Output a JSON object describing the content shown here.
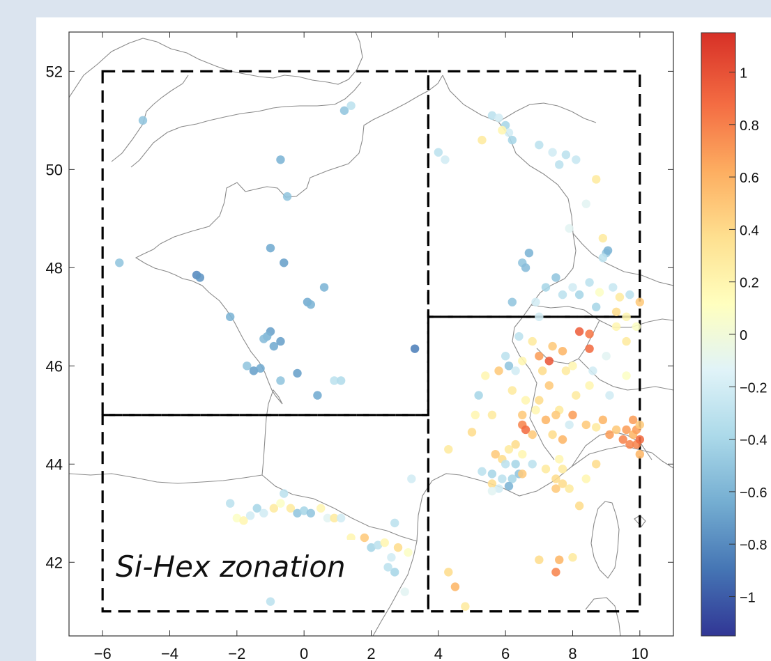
{
  "chart_data": {
    "type": "scatter",
    "title": "",
    "xlabel": "",
    "ylabel": "",
    "xlim": [
      -7,
      11
    ],
    "ylim": [
      40.5,
      52.8
    ],
    "x_ticks": [
      -6,
      -4,
      -2,
      0,
      2,
      4,
      6,
      8,
      10
    ],
    "x_tick_labels": [
      "−6",
      "−4",
      "−2",
      "0",
      "2",
      "4",
      "6",
      "8",
      "10"
    ],
    "y_ticks": [
      42,
      44,
      46,
      48,
      50,
      52
    ],
    "y_tick_labels": [
      "42",
      "44",
      "46",
      "48",
      "50",
      "52"
    ],
    "grid": false,
    "annotation": "Si-Hex zonation",
    "zones": [
      {
        "lon": [
          -6,
          3.7
        ],
        "lat": [
          45,
          52
        ]
      },
      {
        "lon": [
          -6,
          3.7
        ],
        "lat": [
          41,
          45
        ]
      },
      {
        "lon": [
          3.7,
          10
        ],
        "lat": [
          47,
          52
        ]
      },
      {
        "lon": [
          3.7,
          10
        ],
        "lat": [
          41,
          47
        ]
      }
    ],
    "colorbar": {
      "range": [
        -1.15,
        1.15
      ],
      "ticks": [
        1,
        0.8,
        0.6,
        0.4,
        0.2,
        0,
        -0.2,
        -0.4,
        -0.6,
        -0.8,
        -1
      ],
      "tick_labels": [
        "1",
        "0.8",
        "0.6",
        "0.4",
        "0.2",
        "0",
        "−0.2",
        "−0.4",
        "−0.6",
        "−0.8",
        "−1"
      ],
      "colormap": [
        "#313695",
        "#4575b4",
        "#74add1",
        "#abd9e9",
        "#e0f3f8",
        "#ffffbf",
        "#fee090",
        "#fdae61",
        "#f46d43",
        "#d73027"
      ]
    },
    "points": [
      {
        "x": -5.5,
        "y": 48.1,
        "v": -0.5
      },
      {
        "x": -4.8,
        "y": 51.0,
        "v": -0.5
      },
      {
        "x": -3.2,
        "y": 47.85,
        "v": -0.8
      },
      {
        "x": -3.1,
        "y": 47.8,
        "v": -0.75
      },
      {
        "x": -2.2,
        "y": 47.0,
        "v": -0.6
      },
      {
        "x": -1.7,
        "y": 46.0,
        "v": -0.5
      },
      {
        "x": -1.5,
        "y": 45.9,
        "v": -0.7
      },
      {
        "x": -1.3,
        "y": 45.95,
        "v": -0.65
      },
      {
        "x": -1.0,
        "y": 46.7,
        "v": -0.7
      },
      {
        "x": -1.1,
        "y": 46.6,
        "v": -0.6
      },
      {
        "x": -0.9,
        "y": 46.4,
        "v": -0.65
      },
      {
        "x": -0.7,
        "y": 46.5,
        "v": -0.7
      },
      {
        "x": -1.2,
        "y": 46.55,
        "v": -0.55
      },
      {
        "x": -1.0,
        "y": 48.4,
        "v": -0.65
      },
      {
        "x": -0.6,
        "y": 48.1,
        "v": -0.7
      },
      {
        "x": -0.7,
        "y": 50.2,
        "v": -0.6
      },
      {
        "x": -0.5,
        "y": 49.45,
        "v": -0.5
      },
      {
        "x": -0.7,
        "y": 45.7,
        "v": -0.5
      },
      {
        "x": -0.2,
        "y": 45.85,
        "v": -0.7
      },
      {
        "x": 0.1,
        "y": 47.3,
        "v": -0.65
      },
      {
        "x": 0.2,
        "y": 47.25,
        "v": -0.6
      },
      {
        "x": 0.6,
        "y": 47.6,
        "v": -0.6
      },
      {
        "x": 0.4,
        "y": 45.4,
        "v": -0.65
      },
      {
        "x": 0.9,
        "y": 45.7,
        "v": -0.3
      },
      {
        "x": 1.1,
        "y": 45.7,
        "v": -0.35
      },
      {
        "x": 1.2,
        "y": 51.2,
        "v": -0.5
      },
      {
        "x": 1.4,
        "y": 51.3,
        "v": -0.3
      },
      {
        "x": 3.3,
        "y": 46.35,
        "v": -0.85
      },
      {
        "x": -1.8,
        "y": 41.9,
        "v": -0.4
      },
      {
        "x": -1.0,
        "y": 41.2,
        "v": -0.3
      },
      {
        "x": -2.2,
        "y": 43.2,
        "v": -0.3
      },
      {
        "x": -2.0,
        "y": 42.9,
        "v": 0.1
      },
      {
        "x": -1.8,
        "y": 42.85,
        "v": 0.2
      },
      {
        "x": -1.6,
        "y": 42.95,
        "v": -0.2
      },
      {
        "x": -1.4,
        "y": 43.1,
        "v": -0.4
      },
      {
        "x": -1.2,
        "y": 43.0,
        "v": -0.2
      },
      {
        "x": -0.9,
        "y": 43.1,
        "v": 0.3
      },
      {
        "x": -0.7,
        "y": 43.2,
        "v": 0.1
      },
      {
        "x": -0.6,
        "y": 43.4,
        "v": -0.3
      },
      {
        "x": -0.4,
        "y": 43.1,
        "v": 0.3
      },
      {
        "x": -0.2,
        "y": 43.0,
        "v": -0.5
      },
      {
        "x": 0.0,
        "y": 43.05,
        "v": -0.4
      },
      {
        "x": 0.2,
        "y": 43.0,
        "v": -0.5
      },
      {
        "x": 0.5,
        "y": 43.1,
        "v": 0.2
      },
      {
        "x": 0.7,
        "y": 42.9,
        "v": -0.1
      },
      {
        "x": 0.9,
        "y": 42.9,
        "v": 0.3
      },
      {
        "x": 1.1,
        "y": 42.9,
        "v": -0.2
      },
      {
        "x": 1.4,
        "y": 42.5,
        "v": 0.2
      },
      {
        "x": 1.8,
        "y": 42.5,
        "v": 0.5
      },
      {
        "x": 2.0,
        "y": 42.3,
        "v": -0.4
      },
      {
        "x": 2.2,
        "y": 42.35,
        "v": -0.3
      },
      {
        "x": 2.4,
        "y": 42.4,
        "v": 0.2
      },
      {
        "x": 2.6,
        "y": 42.1,
        "v": -0.2
      },
      {
        "x": 2.7,
        "y": 42.8,
        "v": -0.3
      },
      {
        "x": 2.8,
        "y": 42.3,
        "v": 0.4
      },
      {
        "x": 3.1,
        "y": 42.2,
        "v": 0.1
      },
      {
        "x": 3.2,
        "y": 43.7,
        "v": -0.2
      },
      {
        "x": 3.0,
        "y": 41.4,
        "v": -0.1
      },
      {
        "x": 2.7,
        "y": 41.8,
        "v": -0.4
      },
      {
        "x": 2.5,
        "y": 41.9,
        "v": -0.3
      },
      {
        "x": 4.0,
        "y": 50.35,
        "v": -0.3
      },
      {
        "x": 4.2,
        "y": 50.2,
        "v": -0.2
      },
      {
        "x": 5.6,
        "y": 51.1,
        "v": -0.3
      },
      {
        "x": 5.8,
        "y": 51.05,
        "v": -0.2
      },
      {
        "x": 6.0,
        "y": 50.9,
        "v": -0.4
      },
      {
        "x": 6.1,
        "y": 50.75,
        "v": -0.2
      },
      {
        "x": 5.9,
        "y": 50.8,
        "v": 0.2
      },
      {
        "x": 6.2,
        "y": 50.6,
        "v": -0.4
      },
      {
        "x": 5.3,
        "y": 50.6,
        "v": 0.3
      },
      {
        "x": 7.0,
        "y": 50.5,
        "v": -0.3
      },
      {
        "x": 7.4,
        "y": 50.35,
        "v": -0.2
      },
      {
        "x": 7.8,
        "y": 50.3,
        "v": -0.3
      },
      {
        "x": 8.1,
        "y": 50.2,
        "v": -0.25
      },
      {
        "x": 7.6,
        "y": 50.1,
        "v": -0.3
      },
      {
        "x": 8.7,
        "y": 49.8,
        "v": 0.3
      },
      {
        "x": 8.4,
        "y": 49.3,
        "v": -0.1
      },
      {
        "x": 7.9,
        "y": 48.8,
        "v": -0.1
      },
      {
        "x": 8.9,
        "y": 48.6,
        "v": 0.3
      },
      {
        "x": 9.0,
        "y": 48.3,
        "v": -0.5
      },
      {
        "x": 9.05,
        "y": 48.35,
        "v": -0.6
      },
      {
        "x": 8.9,
        "y": 48.2,
        "v": -0.3
      },
      {
        "x": 6.7,
        "y": 48.3,
        "v": -0.6
      },
      {
        "x": 6.5,
        "y": 48.1,
        "v": -0.5
      },
      {
        "x": 6.6,
        "y": 48.0,
        "v": -0.55
      },
      {
        "x": 7.5,
        "y": 47.8,
        "v": -0.5
      },
      {
        "x": 7.2,
        "y": 47.6,
        "v": -0.4
      },
      {
        "x": 8.0,
        "y": 47.6,
        "v": -0.2
      },
      {
        "x": 8.5,
        "y": 47.7,
        "v": -0.3
      },
      {
        "x": 8.8,
        "y": 47.5,
        "v": 0.1
      },
      {
        "x": 7.7,
        "y": 47.45,
        "v": -0.3
      },
      {
        "x": 8.2,
        "y": 47.45,
        "v": -0.4
      },
      {
        "x": 9.2,
        "y": 47.6,
        "v": -0.25
      },
      {
        "x": 9.4,
        "y": 47.4,
        "v": 0.3
      },
      {
        "x": 9.7,
        "y": 47.45,
        "v": -0.3
      },
      {
        "x": 10.0,
        "y": 47.3,
        "v": 0.5
      },
      {
        "x": 9.3,
        "y": 47.1,
        "v": 0.4
      },
      {
        "x": 8.7,
        "y": 47.2,
        "v": -0.4
      },
      {
        "x": 9.6,
        "y": 47.0,
        "v": 0.2
      },
      {
        "x": 6.2,
        "y": 47.3,
        "v": -0.5
      },
      {
        "x": 6.9,
        "y": 47.3,
        "v": -0.2
      },
      {
        "x": 7.0,
        "y": 47.0,
        "v": -0.2
      },
      {
        "x": 8.2,
        "y": 46.7,
        "v": 0.95
      },
      {
        "x": 8.5,
        "y": 46.65,
        "v": 0.85
      },
      {
        "x": 8.5,
        "y": 46.35,
        "v": 0.9
      },
      {
        "x": 7.3,
        "y": 46.1,
        "v": 0.98
      },
      {
        "x": 9.3,
        "y": 46.8,
        "v": 0.2
      },
      {
        "x": 9.6,
        "y": 46.5,
        "v": 0.3
      },
      {
        "x": 9.9,
        "y": 46.8,
        "v": 0.1
      },
      {
        "x": 9.0,
        "y": 46.2,
        "v": -0.1
      },
      {
        "x": 7.4,
        "y": 46.4,
        "v": 0.5
      },
      {
        "x": 7.7,
        "y": 46.3,
        "v": 0.6
      },
      {
        "x": 7.0,
        "y": 46.2,
        "v": 0.7
      },
      {
        "x": 6.8,
        "y": 46.5,
        "v": 0.3
      },
      {
        "x": 6.4,
        "y": 46.6,
        "v": -0.3
      },
      {
        "x": 6.0,
        "y": 46.2,
        "v": -0.3
      },
      {
        "x": 6.1,
        "y": 46.0,
        "v": -0.5
      },
      {
        "x": 6.3,
        "y": 45.9,
        "v": -0.2
      },
      {
        "x": 5.8,
        "y": 45.9,
        "v": 0.5
      },
      {
        "x": 6.5,
        "y": 46.1,
        "v": 0.2
      },
      {
        "x": 7.1,
        "y": 45.9,
        "v": 0.4
      },
      {
        "x": 7.8,
        "y": 45.9,
        "v": 0.3
      },
      {
        "x": 8.6,
        "y": 45.9,
        "v": -0.2
      },
      {
        "x": 8.0,
        "y": 46.0,
        "v": 0.2
      },
      {
        "x": 5.4,
        "y": 45.8,
        "v": 0.2
      },
      {
        "x": 5.2,
        "y": 45.4,
        "v": -0.4
      },
      {
        "x": 6.2,
        "y": 45.5,
        "v": 0.3
      },
      {
        "x": 6.6,
        "y": 45.3,
        "v": 0.2
      },
      {
        "x": 6.5,
        "y": 45.0,
        "v": 0.5
      },
      {
        "x": 7.0,
        "y": 45.3,
        "v": 0.4
      },
      {
        "x": 7.3,
        "y": 45.6,
        "v": 0.5
      },
      {
        "x": 6.9,
        "y": 45.1,
        "v": 0.2
      },
      {
        "x": 7.6,
        "y": 45.1,
        "v": 0.3
      },
      {
        "x": 8.1,
        "y": 45.4,
        "v": 0.3
      },
      {
        "x": 8.5,
        "y": 45.6,
        "v": 0.2
      },
      {
        "x": 9.1,
        "y": 45.4,
        "v": -0.2
      },
      {
        "x": 9.6,
        "y": 45.8,
        "v": 0.1
      },
      {
        "x": 5.0,
        "y": 44.65,
        "v": 0.4
      },
      {
        "x": 5.1,
        "y": 45.0,
        "v": 0.2
      },
      {
        "x": 5.6,
        "y": 45.0,
        "v": 0.3
      },
      {
        "x": 4.3,
        "y": 44.3,
        "v": 0.3
      },
      {
        "x": 6.5,
        "y": 44.8,
        "v": 0.8
      },
      {
        "x": 6.6,
        "y": 44.7,
        "v": 0.9
      },
      {
        "x": 6.8,
        "y": 44.6,
        "v": 0.5
      },
      {
        "x": 7.2,
        "y": 44.9,
        "v": 0.6
      },
      {
        "x": 7.4,
        "y": 44.6,
        "v": 0.4
      },
      {
        "x": 7.5,
        "y": 45.0,
        "v": 0.5
      },
      {
        "x": 8.0,
        "y": 45.0,
        "v": 0.7
      },
      {
        "x": 7.7,
        "y": 44.5,
        "v": 0.6
      },
      {
        "x": 7.9,
        "y": 44.8,
        "v": -0.2
      },
      {
        "x": 8.4,
        "y": 44.8,
        "v": 0.5
      },
      {
        "x": 8.7,
        "y": 44.75,
        "v": 0.3
      },
      {
        "x": 8.9,
        "y": 44.9,
        "v": 0.6
      },
      {
        "x": 9.1,
        "y": 44.6,
        "v": 0.7
      },
      {
        "x": 9.3,
        "y": 44.7,
        "v": 0.5
      },
      {
        "x": 9.5,
        "y": 44.5,
        "v": 0.8
      },
      {
        "x": 9.6,
        "y": 44.7,
        "v": 0.7
      },
      {
        "x": 9.8,
        "y": 44.6,
        "v": 0.6
      },
      {
        "x": 9.9,
        "y": 44.4,
        "v": 0.8
      },
      {
        "x": 10.0,
        "y": 44.5,
        "v": 0.9
      },
      {
        "x": 9.9,
        "y": 44.7,
        "v": 0.7
      },
      {
        "x": 10.0,
        "y": 44.2,
        "v": 0.6
      },
      {
        "x": 9.7,
        "y": 44.4,
        "v": 0.8
      },
      {
        "x": 9.8,
        "y": 44.9,
        "v": 0.7
      },
      {
        "x": 10.0,
        "y": 44.8,
        "v": 0.5
      },
      {
        "x": 5.7,
        "y": 44.2,
        "v": 0.5
      },
      {
        "x": 5.9,
        "y": 44.1,
        "v": 0.4
      },
      {
        "x": 6.1,
        "y": 44.3,
        "v": 0.3
      },
      {
        "x": 6.3,
        "y": 44.4,
        "v": 0.4
      },
      {
        "x": 6.5,
        "y": 44.2,
        "v": 0.2
      },
      {
        "x": 6.3,
        "y": 44.0,
        "v": -0.4
      },
      {
        "x": 6.0,
        "y": 44.0,
        "v": -0.3
      },
      {
        "x": 6.4,
        "y": 43.8,
        "v": -0.5
      },
      {
        "x": 6.2,
        "y": 43.7,
        "v": -0.4
      },
      {
        "x": 6.1,
        "y": 43.55,
        "v": -0.6
      },
      {
        "x": 5.9,
        "y": 43.7,
        "v": -0.3
      },
      {
        "x": 5.6,
        "y": 43.8,
        "v": -0.4
      },
      {
        "x": 5.3,
        "y": 43.85,
        "v": -0.3
      },
      {
        "x": 5.6,
        "y": 43.6,
        "v": 0.4
      },
      {
        "x": 5.8,
        "y": 43.5,
        "v": -0.2
      },
      {
        "x": 6.5,
        "y": 43.8,
        "v": 0.5
      },
      {
        "x": 5.6,
        "y": 43.45,
        "v": -0.1
      },
      {
        "x": 6.8,
        "y": 44.0,
        "v": -0.3
      },
      {
        "x": 7.2,
        "y": 43.9,
        "v": 0.3
      },
      {
        "x": 7.5,
        "y": 43.7,
        "v": 0.4
      },
      {
        "x": 7.5,
        "y": 43.5,
        "v": 0.5
      },
      {
        "x": 7.7,
        "y": 43.6,
        "v": 0.4
      },
      {
        "x": 7.9,
        "y": 43.5,
        "v": 0.3
      },
      {
        "x": 7.6,
        "y": 44.1,
        "v": 0.2
      },
      {
        "x": 7.7,
        "y": 43.9,
        "v": 0.3
      },
      {
        "x": 8.2,
        "y": 43.15,
        "v": 0.4
      },
      {
        "x": 8.4,
        "y": 43.7,
        "v": 0.2
      },
      {
        "x": 8.7,
        "y": 44.0,
        "v": 0.4
      },
      {
        "x": 4.3,
        "y": 41.8,
        "v": 0.4
      },
      {
        "x": 4.5,
        "y": 41.5,
        "v": 0.6
      },
      {
        "x": 4.8,
        "y": 41.1,
        "v": 0.3
      },
      {
        "x": 7.0,
        "y": 42.05,
        "v": 0.4
      },
      {
        "x": 7.6,
        "y": 42.05,
        "v": 0.6
      },
      {
        "x": 7.5,
        "y": 41.8,
        "v": 0.8
      },
      {
        "x": 8.0,
        "y": 42.1,
        "v": 0.3
      }
    ]
  }
}
